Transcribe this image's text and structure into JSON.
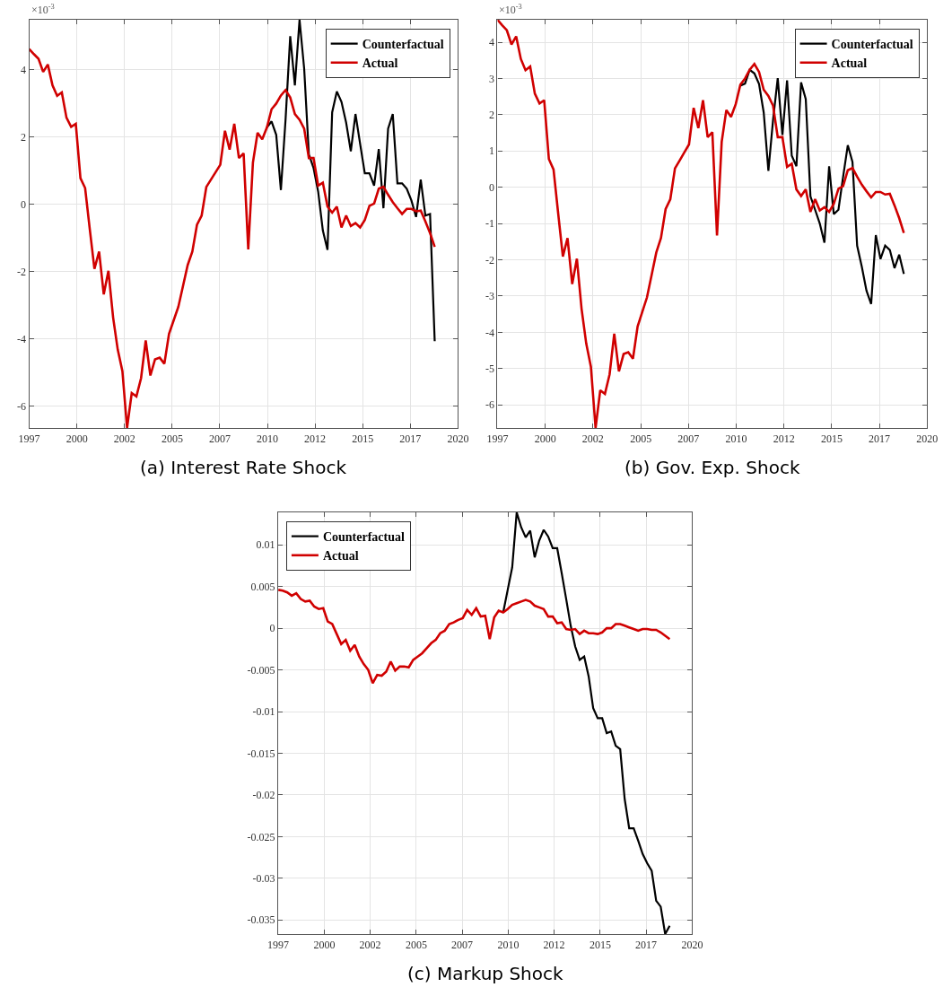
{
  "chart_data": [
    {
      "type": "line",
      "title": "(a) Interest Rate Shock",
      "annotations": [
        "×10$^{-3}$"
      ],
      "x": [
        1997,
        1997.25,
        1997.5,
        1997.75,
        1998,
        1998.25,
        1998.5,
        1998.75,
        1999,
        1999.25,
        1999.5,
        1999.75,
        2000,
        2000.25,
        2000.5,
        2000.75,
        2001,
        2001.25,
        2001.5,
        2001.75,
        2002,
        2002.25,
        2002.5,
        2002.75,
        2003,
        2003.25,
        2003.5,
        2003.75,
        2004,
        2004.25,
        2004.5,
        2004.75,
        2005,
        2005.25,
        2005.5,
        2005.75,
        2006,
        2006.25,
        2006.5,
        2006.75,
        2007,
        2007.25,
        2007.5,
        2007.75,
        2008,
        2008.25,
        2008.5,
        2008.75,
        2009,
        2009.25,
        2009.5,
        2009.75,
        2010,
        2010.25,
        2010.5,
        2010.75,
        2011,
        2011.25,
        2011.5,
        2011.75,
        2012,
        2012.25,
        2012.5,
        2012.75,
        2013,
        2013.25,
        2013.5,
        2013.75,
        2014,
        2014.25,
        2014.5,
        2014.75,
        2015,
        2015.25,
        2015.5,
        2015.75,
        2016,
        2016.25,
        2016.5,
        2016.75,
        2017,
        2017.25,
        2017.5,
        2017.75,
        2018,
        2018.25,
        2018.5,
        2018.75
      ],
      "series": [
        {
          "name": "Counterfactual",
          "color": "#000000",
          "values": [
            null,
            null,
            null,
            null,
            null,
            null,
            null,
            null,
            null,
            null,
            null,
            null,
            null,
            null,
            null,
            null,
            null,
            null,
            null,
            null,
            null,
            null,
            null,
            null,
            null,
            null,
            null,
            null,
            null,
            null,
            null,
            null,
            null,
            null,
            null,
            null,
            null,
            null,
            null,
            null,
            null,
            null,
            null,
            null,
            null,
            null,
            null,
            null,
            null,
            null,
            null,
            2.29,
            2.47,
            2.07,
            0.43,
            2.52,
            5.0,
            3.54,
            5.49,
            4.03,
            1.49,
            1.09,
            0.38,
            -0.77,
            -1.35,
            2.74,
            3.36,
            3.05,
            2.43,
            1.58,
            2.69,
            1.8,
            0.93,
            0.93,
            0.56,
            1.65,
            -0.11,
            2.25,
            2.69,
            0.63,
            0.63,
            0.47,
            0.12,
            -0.37,
            0.74,
            -0.33,
            -0.28,
            -4.06
          ]
        },
        {
          "name": "Actual",
          "color": "#d00000",
          "values": [
            4.62,
            4.47,
            4.33,
            3.94,
            4.16,
            3.54,
            3.23,
            3.33,
            2.58,
            2.31,
            2.4,
            0.78,
            0.49,
            -0.73,
            -1.91,
            -1.4,
            -2.67,
            -1.97,
            -3.35,
            -4.31,
            -4.95,
            -6.64,
            -5.6,
            -5.7,
            -5.16,
            -4.04,
            -5.08,
            -4.6,
            -4.55,
            -4.73,
            -3.84,
            -3.44,
            -3.04,
            -2.42,
            -1.8,
            -1.4,
            -0.6,
            -0.33,
            0.52,
            0.74,
            0.96,
            1.18,
            2.19,
            1.63,
            2.4,
            1.38,
            1.52,
            -1.33,
            1.25,
            2.13,
            1.94,
            2.29,
            2.83,
            3.0,
            3.24,
            3.4,
            3.18,
            2.69,
            2.52,
            2.25,
            1.38,
            1.38,
            0.56,
            0.65,
            -0.06,
            -0.24,
            -0.06,
            -0.68,
            -0.33,
            -0.64,
            -0.55,
            -0.68,
            -0.46,
            -0.04,
            0.03,
            0.47,
            0.53,
            0.29,
            0.07,
            -0.11,
            -0.28,
            -0.13,
            -0.13,
            -0.2,
            -0.18,
            -0.5,
            -0.85,
            -1.26
          ]
        }
      ],
      "xlim": [
        1997,
        2020
      ],
      "xticks": [
        {
          "value": 1997,
          "label": "1997"
        },
        {
          "value": 1999.56,
          "label": "2000"
        },
        {
          "value": 2002.11,
          "label": "2002"
        },
        {
          "value": 2004.67,
          "label": "2005"
        },
        {
          "value": 2007.22,
          "label": "2007"
        },
        {
          "value": 2009.78,
          "label": "2010"
        },
        {
          "value": 2012.33,
          "label": "2012"
        },
        {
          "value": 2014.89,
          "label": "2015"
        },
        {
          "value": 2017.44,
          "label": "2017"
        },
        {
          "value": 2020,
          "label": "2020"
        }
      ],
      "ylim": [
        -6.64,
        5.49
      ],
      "yticks": [
        -6,
        -4,
        -2,
        0,
        2,
        4
      ],
      "grid": true,
      "legend": "top right"
    },
    {
      "type": "line",
      "title": "(b) Gov. Exp. Shock",
      "annotations": [
        "×10$^{-3}$"
      ],
      "x": [
        1997,
        1997.25,
        1997.5,
        1997.75,
        1998,
        1998.25,
        1998.5,
        1998.75,
        1999,
        1999.25,
        1999.5,
        1999.75,
        2000,
        2000.25,
        2000.5,
        2000.75,
        2001,
        2001.25,
        2001.5,
        2001.75,
        2002,
        2002.25,
        2002.5,
        2002.75,
        2003,
        2003.25,
        2003.5,
        2003.75,
        2004,
        2004.25,
        2004.5,
        2004.75,
        2005,
        2005.25,
        2005.5,
        2005.75,
        2006,
        2006.25,
        2006.5,
        2006.75,
        2007,
        2007.25,
        2007.5,
        2007.75,
        2008,
        2008.25,
        2008.5,
        2008.75,
        2009,
        2009.25,
        2009.5,
        2009.75,
        2010,
        2010.25,
        2010.5,
        2010.75,
        2011,
        2011.25,
        2011.5,
        2011.75,
        2012,
        2012.25,
        2012.5,
        2012.75,
        2013,
        2013.25,
        2013.5,
        2013.75,
        2014,
        2014.25,
        2014.5,
        2014.75,
        2015,
        2015.25,
        2015.5,
        2015.75,
        2016,
        2016.25,
        2016.5,
        2016.75,
        2017,
        2017.25,
        2017.5,
        2017.75,
        2018,
        2018.25,
        2018.5,
        2018.75
      ],
      "series": [
        {
          "name": "Counterfactual",
          "color": "#000000",
          "values": [
            null,
            null,
            null,
            null,
            null,
            null,
            null,
            null,
            null,
            null,
            null,
            null,
            null,
            null,
            null,
            null,
            null,
            null,
            null,
            null,
            null,
            null,
            null,
            null,
            null,
            null,
            null,
            null,
            null,
            null,
            null,
            null,
            null,
            null,
            null,
            null,
            null,
            null,
            null,
            null,
            null,
            null,
            null,
            null,
            null,
            null,
            null,
            null,
            null,
            null,
            null,
            null,
            2.8,
            2.86,
            3.24,
            3.14,
            2.85,
            2.06,
            0.45,
            1.86,
            3.01,
            1.44,
            2.95,
            0.87,
            0.58,
            2.89,
            2.43,
            -0.25,
            -0.62,
            -1.0,
            -1.53,
            0.58,
            -0.74,
            -0.62,
            0.29,
            1.16,
            0.7,
            -1.61,
            -2.19,
            -2.85,
            -3.22,
            -1.32,
            -1.98,
            -1.61,
            -1.73,
            -2.23,
            -1.86,
            -2.39
          ]
        },
        {
          "name": "Actual",
          "color": "#d00000",
          "values": [
            4.62,
            4.47,
            4.33,
            3.94,
            4.16,
            3.54,
            3.23,
            3.33,
            2.58,
            2.31,
            2.4,
            0.78,
            0.49,
            -0.73,
            -1.91,
            -1.4,
            -2.67,
            -1.97,
            -3.35,
            -4.31,
            -4.95,
            -6.64,
            -5.6,
            -5.7,
            -5.16,
            -4.04,
            -5.08,
            -4.6,
            -4.55,
            -4.73,
            -3.84,
            -3.44,
            -3.04,
            -2.42,
            -1.8,
            -1.4,
            -0.6,
            -0.33,
            0.52,
            0.74,
            0.96,
            1.18,
            2.19,
            1.63,
            2.4,
            1.38,
            1.52,
            -1.33,
            1.25,
            2.13,
            1.94,
            2.29,
            2.83,
            3.0,
            3.24,
            3.4,
            3.18,
            2.69,
            2.52,
            2.25,
            1.38,
            1.38,
            0.56,
            0.65,
            -0.06,
            -0.24,
            -0.06,
            -0.68,
            -0.33,
            -0.64,
            -0.55,
            -0.68,
            -0.46,
            -0.04,
            0.03,
            0.47,
            0.53,
            0.29,
            0.07,
            -0.11,
            -0.28,
            -0.13,
            -0.13,
            -0.2,
            -0.18,
            -0.5,
            -0.85,
            -1.26
          ]
        }
      ],
      "xlim": [
        1997,
        2020
      ],
      "xticks": [
        {
          "value": 1997,
          "label": "1997"
        },
        {
          "value": 1999.56,
          "label": "2000"
        },
        {
          "value": 2002.11,
          "label": "2002"
        },
        {
          "value": 2004.67,
          "label": "2005"
        },
        {
          "value": 2007.22,
          "label": "2007"
        },
        {
          "value": 2009.78,
          "label": "2010"
        },
        {
          "value": 2012.33,
          "label": "2012"
        },
        {
          "value": 2014.89,
          "label": "2015"
        },
        {
          "value": 2017.44,
          "label": "2017"
        },
        {
          "value": 2020,
          "label": "2020"
        }
      ],
      "ylim": [
        -6.64,
        4.62
      ],
      "yticks": [
        -6,
        -5,
        -4,
        -3,
        -2,
        -1,
        0,
        1,
        2,
        3,
        4
      ],
      "grid": true,
      "legend": "top right"
    },
    {
      "type": "line",
      "title": "(c) Markup Shock",
      "x": [
        1997,
        1997.25,
        1997.5,
        1997.75,
        1998,
        1998.25,
        1998.5,
        1998.75,
        1999,
        1999.25,
        1999.5,
        1999.75,
        2000,
        2000.25,
        2000.5,
        2000.75,
        2001,
        2001.25,
        2001.5,
        2001.75,
        2002,
        2002.25,
        2002.5,
        2002.75,
        2003,
        2003.25,
        2003.5,
        2003.75,
        2004,
        2004.25,
        2004.5,
        2004.75,
        2005,
        2005.25,
        2005.5,
        2005.75,
        2006,
        2006.25,
        2006.5,
        2006.75,
        2007,
        2007.25,
        2007.5,
        2007.75,
        2008,
        2008.25,
        2008.5,
        2008.75,
        2009,
        2009.25,
        2009.5,
        2009.75,
        2010,
        2010.25,
        2010.5,
        2010.75,
        2011,
        2011.25,
        2011.5,
        2011.75,
        2012,
        2012.25,
        2012.5,
        2012.75,
        2013,
        2013.25,
        2013.5,
        2013.75,
        2014,
        2014.25,
        2014.5,
        2014.75,
        2015,
        2015.25,
        2015.5,
        2015.75,
        2016,
        2016.25,
        2016.5,
        2016.75,
        2017,
        2017.25,
        2017.5,
        2017.75,
        2018,
        2018.25,
        2018.5,
        2018.75
      ],
      "series": [
        {
          "name": "Counterfactual",
          "color": "#000000",
          "values": [
            null,
            null,
            null,
            null,
            null,
            null,
            null,
            null,
            null,
            null,
            null,
            null,
            null,
            null,
            null,
            null,
            null,
            null,
            null,
            null,
            null,
            null,
            null,
            null,
            null,
            null,
            null,
            null,
            null,
            null,
            null,
            null,
            null,
            null,
            null,
            null,
            null,
            null,
            null,
            null,
            null,
            null,
            null,
            null,
            null,
            null,
            null,
            null,
            null,
            null,
            0.0019,
            0.0046,
            0.0073,
            0.0139,
            0.0121,
            0.0109,
            0.0117,
            0.0085,
            0.0105,
            0.0118,
            0.011,
            0.0096,
            0.0096,
            0.0066,
            0.0035,
            0.0003,
            -0.0022,
            -0.0038,
            -0.0034,
            -0.0058,
            -0.0096,
            -0.0108,
            -0.0108,
            -0.0126,
            -0.0124,
            -0.0141,
            -0.0145,
            -0.0205,
            -0.024,
            -0.024,
            -0.0255,
            -0.0271,
            -0.0282,
            -0.0291,
            -0.0327,
            -0.0334,
            -0.0367,
            -0.0357
          ]
        },
        {
          "name": "Actual",
          "color": "#d00000",
          "values": [
            0.0046,
            0.0045,
            0.0043,
            0.0039,
            0.0042,
            0.0035,
            0.0032,
            0.0033,
            0.0026,
            0.0023,
            0.0024,
            0.0008,
            0.0005,
            -0.0007,
            -0.0019,
            -0.0014,
            -0.0027,
            -0.002,
            -0.0034,
            -0.0043,
            -0.005,
            -0.0066,
            -0.0056,
            -0.0057,
            -0.0052,
            -0.004,
            -0.0051,
            -0.0046,
            -0.0046,
            -0.0047,
            -0.0038,
            -0.0034,
            -0.003,
            -0.0024,
            -0.0018,
            -0.0014,
            -0.0006,
            -0.0003,
            0.0005,
            0.0007,
            0.001,
            0.0012,
            0.0022,
            0.0016,
            0.0024,
            0.0014,
            0.0015,
            -0.0013,
            0.0013,
            0.0021,
            0.0019,
            0.0023,
            0.0028,
            0.003,
            0.0032,
            0.0034,
            0.0032,
            0.0027,
            0.0025,
            0.0023,
            0.0014,
            0.0014,
            0.0006,
            0.0007,
            -0.0001,
            -0.0002,
            -0.0001,
            -0.0007,
            -0.0003,
            -0.0006,
            -0.0006,
            -0.0007,
            -0.0005,
            0,
            0,
            0.0005,
            0.0005,
            0.0003,
            0.0001,
            -0.0001,
            -0.0003,
            -0.0001,
            -0.0001,
            -0.0002,
            -0.0002,
            -0.0005,
            -0.0009,
            -0.0013
          ]
        }
      ],
      "xlim": [
        1997,
        2020
      ],
      "xticks": [
        {
          "value": 1997,
          "label": "1997"
        },
        {
          "value": 1999.56,
          "label": "2000"
        },
        {
          "value": 2002.11,
          "label": "2002"
        },
        {
          "value": 2004.67,
          "label": "2005"
        },
        {
          "value": 2007.22,
          "label": "2007"
        },
        {
          "value": 2009.78,
          "label": "2010"
        },
        {
          "value": 2012.33,
          "label": "2012"
        },
        {
          "value": 2014.89,
          "label": "2015"
        },
        {
          "value": 2017.44,
          "label": "2017"
        },
        {
          "value": 2020,
          "label": "2020"
        }
      ],
      "ylim": [
        -0.0367,
        0.0139
      ],
      "yticks": [
        -0.035,
        -0.03,
        -0.025,
        -0.02,
        -0.015,
        -0.01,
        -0.005,
        0,
        0.005,
        0.01
      ],
      "grid": true,
      "legend": "top left"
    }
  ]
}
